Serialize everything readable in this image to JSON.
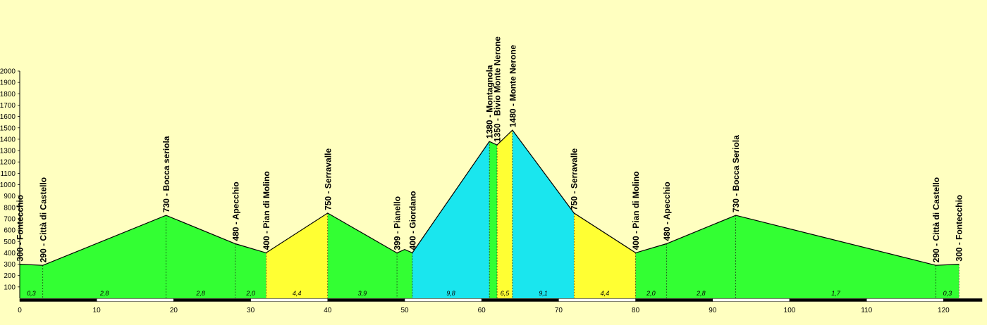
{
  "chart_data": {
    "type": "area",
    "title": "",
    "xlabel": "",
    "ylabel": "",
    "xlim": [
      0,
      125
    ],
    "ylim": [
      0,
      2000
    ],
    "yticks": [
      "100",
      "200",
      "300",
      "400",
      "500",
      "600",
      "700",
      "800",
      "900",
      "1000",
      "1100",
      "1200",
      "1300",
      "1400",
      "1500",
      "1600",
      "1700",
      "1800",
      "1900",
      "2000"
    ],
    "xticks": [
      "0",
      "10",
      "20",
      "30",
      "40",
      "50",
      "60",
      "70",
      "80",
      "90",
      "100",
      "110",
      "120"
    ],
    "colors": {
      "green": "#33FF33",
      "yellow": "#FFFF33",
      "cyan": "#1AE6EE",
      "background": "#FFFFC0"
    },
    "profile": [
      {
        "x": 0,
        "y": 300
      },
      {
        "x": 3,
        "y": 290
      },
      {
        "x": 19,
        "y": 730
      },
      {
        "x": 28,
        "y": 480
      },
      {
        "x": 32,
        "y": 400
      },
      {
        "x": 40,
        "y": 750
      },
      {
        "x": 49,
        "y": 399
      },
      {
        "x": 50,
        "y": 430
      },
      {
        "x": 51,
        "y": 400
      },
      {
        "x": 61,
        "y": 1380
      },
      {
        "x": 62,
        "y": 1350
      },
      {
        "x": 64,
        "y": 1480
      },
      {
        "x": 72,
        "y": 750
      },
      {
        "x": 80,
        "y": 400
      },
      {
        "x": 84,
        "y": 480
      },
      {
        "x": 93,
        "y": 730
      },
      {
        "x": 119,
        "y": 290
      },
      {
        "x": 122,
        "y": 300
      }
    ],
    "segments": [
      {
        "from": 0,
        "to": 3,
        "gradient": "0,3",
        "color": "green"
      },
      {
        "from": 3,
        "to": 19,
        "gradient": "2,8",
        "color": "green"
      },
      {
        "from": 19,
        "to": 28,
        "gradient": "2,8",
        "color": "green"
      },
      {
        "from": 28,
        "to": 32,
        "gradient": "2,0",
        "color": "green"
      },
      {
        "from": 32,
        "to": 40,
        "gradient": "4,4",
        "color": "yellow"
      },
      {
        "from": 40,
        "to": 49,
        "gradient": "3,9",
        "color": "green"
      },
      {
        "from": 49,
        "to": 51,
        "gradient": "",
        "color": "green"
      },
      {
        "from": 51,
        "to": 61,
        "gradient": "9,8",
        "color": "cyan"
      },
      {
        "from": 61,
        "to": 62,
        "gradient": "",
        "color": "green"
      },
      {
        "from": 62,
        "to": 64,
        "gradient": "6,5",
        "color": "yellow"
      },
      {
        "from": 64,
        "to": 72,
        "gradient": "9,1",
        "color": "cyan"
      },
      {
        "from": 72,
        "to": 80,
        "gradient": "4,4",
        "color": "yellow"
      },
      {
        "from": 80,
        "to": 84,
        "gradient": "2,0",
        "color": "green"
      },
      {
        "from": 84,
        "to": 93,
        "gradient": "2,8",
        "color": "green"
      },
      {
        "from": 93,
        "to": 119,
        "gradient": "1,7",
        "color": "green"
      },
      {
        "from": 119,
        "to": 122,
        "gradient": "0,3",
        "color": "green"
      }
    ],
    "waypoints": [
      {
        "x": 0,
        "label": "300 - Fontecchio"
      },
      {
        "x": 3,
        "label": "290 - Città di Castello"
      },
      {
        "x": 19,
        "label": "730 - Bocca seriola"
      },
      {
        "x": 28,
        "label": "480 - Apecchio"
      },
      {
        "x": 32,
        "label": "400 - Pian di Molino"
      },
      {
        "x": 40,
        "label": "750 - Serravalle"
      },
      {
        "x": 49,
        "label": "399 - Pianello"
      },
      {
        "x": 51,
        "label": "400 - Giordano"
      },
      {
        "x": 61,
        "label": "1380 - Montagnola"
      },
      {
        "x": 62,
        "label": "1350 - Bivio Monte Nerone"
      },
      {
        "x": 64,
        "label": "1480 - Monte Nerone"
      },
      {
        "x": 72,
        "label": "750 - Serravalle"
      },
      {
        "x": 80,
        "label": "400 - Pian di Molino"
      },
      {
        "x": 84,
        "label": "480 - Apecchio"
      },
      {
        "x": 93,
        "label": "730 - Bocca Seriola"
      },
      {
        "x": 119,
        "label": "290 - Città di Castello"
      },
      {
        "x": 122,
        "label": "300 - Fontecchio"
      }
    ]
  }
}
